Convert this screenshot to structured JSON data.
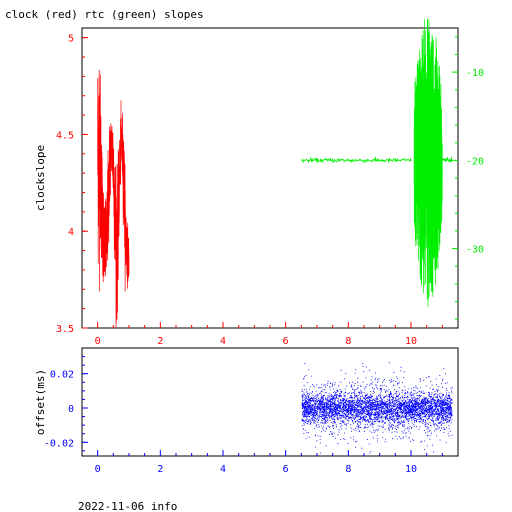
{
  "title": "clock (red) rtc (green) slopes",
  "footer": "2022-11-06 info",
  "colors": {
    "red": "#ff0000",
    "green": "#00ee00",
    "blue": "#0000ff",
    "axis": "#000000"
  },
  "chart_data": [
    {
      "type": "line",
      "name": "slopes",
      "ylabel": "clockslope",
      "xlabel": "",
      "xlim": [
        -0.5,
        11.5
      ],
      "ylim": [
        3.5,
        5.05
      ],
      "y2lim": [
        -39,
        -5
      ],
      "x_ticks": [
        0,
        2,
        4,
        6,
        8,
        10
      ],
      "x_tick_labels": [
        "0",
        "2",
        "4",
        "6",
        "8",
        "10"
      ],
      "y_ticks": [
        3.5,
        4,
        4.5,
        5
      ],
      "y_tick_labels": [
        "3.5",
        "4",
        "4.5",
        "5"
      ],
      "y2_ticks": [
        -30,
        -20,
        -10
      ],
      "y2_tick_labels": [
        "-30",
        "-20",
        "-10"
      ],
      "series": [
        {
          "color": "red",
          "axis": "left",
          "x": [
            0.0,
            0.05,
            0.1,
            0.15,
            0.2,
            0.25,
            0.3,
            0.35,
            0.4,
            0.45,
            0.5,
            0.55,
            0.6,
            0.65,
            0.7,
            0.75,
            0.8,
            0.85,
            0.9,
            0.95,
            1.0
          ],
          "y_center": [
            4.4,
            4.45,
            4.3,
            4.1,
            3.95,
            3.9,
            4.0,
            4.2,
            4.4,
            4.45,
            4.35,
            4.1,
            3.9,
            4.0,
            4.3,
            4.48,
            4.4,
            4.2,
            3.95,
            3.9,
            3.85
          ],
          "y_spread": [
            0.55,
            0.6,
            0.4,
            0.3,
            0.25,
            0.2,
            0.25,
            0.3,
            0.2,
            0.15,
            0.25,
            0.35,
            0.4,
            0.3,
            0.2,
            0.15,
            0.2,
            0.25,
            0.2,
            0.15,
            0.1
          ]
        },
        {
          "color": "green",
          "axis": "right",
          "x_flat": [
            6.5,
            10.0
          ],
          "y_flat": -20.0,
          "x_burst": [
            10.1,
            11.0
          ],
          "burst_center": -20.0,
          "burst_amplitude": 17
        }
      ]
    },
    {
      "type": "scatter",
      "name": "offset",
      "ylabel": "offset(ms)",
      "xlabel": "",
      "xlim": [
        -0.5,
        11.5
      ],
      "ylim": [
        -0.028,
        0.035
      ],
      "x_ticks": [
        0,
        2,
        4,
        6,
        8,
        10
      ],
      "x_tick_labels": [
        "0",
        "2",
        "4",
        "6",
        "8",
        "10"
      ],
      "y_ticks": [
        -0.02,
        0,
        0.02
      ],
      "y_tick_labels": [
        "-0.02",
        "0",
        "0.02"
      ],
      "series": [
        {
          "color": "blue",
          "x_range": [
            6.5,
            11.3
          ],
          "center": 0.0,
          "core_spread": 0.004,
          "outer_spread": 0.02
        }
      ]
    }
  ]
}
